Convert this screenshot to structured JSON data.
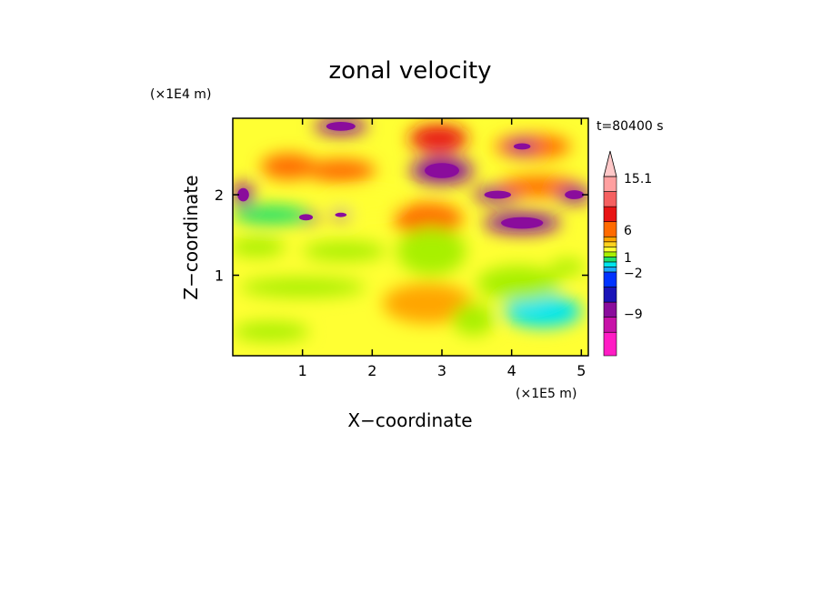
{
  "chart_data": {
    "type": "heatmap",
    "title": "zonal velocity",
    "xlabel": "X−coordinate",
    "ylabel": "Z−coordinate",
    "x_unit": "(×1E5 m)",
    "y_unit": "(×1E4 m)",
    "time_label": "t=80400 s",
    "xlim": [
      0,
      5.1
    ],
    "ylim": [
      0,
      2.95
    ],
    "x_ticks": [
      1,
      2,
      3,
      4,
      5
    ],
    "y_ticks": [
      1,
      2
    ],
    "colorbar": {
      "colors": [
        "#ff1cc4",
        "#c712a8",
        "#8a0c9c",
        "#1a14b8",
        "#0033ff",
        "#1aa9ff",
        "#00e5ee",
        "#22e06a",
        "#a8f000",
        "#ffff33",
        "#ffd21f",
        "#ffa500",
        "#ff6a00",
        "#e81414",
        "#f56060",
        "#ffa0a0",
        "#ffc8c8"
      ],
      "labels": [
        "15.1",
        "6",
        "1",
        "−2",
        "−9"
      ],
      "extend_top": true
    },
    "features": [
      {
        "x": 1.55,
        "z": 2.85,
        "rx": 0.38,
        "rz": 0.1,
        "value": -9
      },
      {
        "x": 2.95,
        "z": 2.7,
        "rx": 0.42,
        "rz": 0.17,
        "value": 6
      },
      {
        "x": 3.0,
        "z": 2.3,
        "rx": 0.45,
        "rz": 0.17,
        "value": -9
      },
      {
        "x": 0.8,
        "z": 2.35,
        "rx": 0.4,
        "rz": 0.16,
        "value": 4
      },
      {
        "x": 1.55,
        "z": 2.3,
        "rx": 0.5,
        "rz": 0.14,
        "value": 4
      },
      {
        "x": 4.3,
        "z": 2.6,
        "rx": 0.55,
        "rz": 0.15,
        "value": 5
      },
      {
        "x": 4.15,
        "z": 2.6,
        "rx": 0.22,
        "rz": 0.07,
        "value": -9
      },
      {
        "x": 3.8,
        "z": 2.0,
        "rx": 0.35,
        "rz": 0.09,
        "value": -9
      },
      {
        "x": 4.15,
        "z": 1.65,
        "rx": 0.55,
        "rz": 0.13,
        "value": -9
      },
      {
        "x": 4.4,
        "z": 2.1,
        "rx": 0.6,
        "rz": 0.13,
        "value": 5
      },
      {
        "x": 1.05,
        "z": 1.72,
        "rx": 0.18,
        "rz": 0.07,
        "value": -9
      },
      {
        "x": 1.55,
        "z": 1.75,
        "rx": 0.15,
        "rz": 0.05,
        "value": -9
      },
      {
        "x": 0.55,
        "z": 1.75,
        "rx": 0.55,
        "rz": 0.12,
        "value": -2
      },
      {
        "x": 1.9,
        "z": 1.9,
        "rx": 0.55,
        "rz": 0.12,
        "value": 0
      },
      {
        "x": 2.8,
        "z": 1.7,
        "rx": 0.5,
        "rz": 0.2,
        "value": 4
      },
      {
        "x": 2.85,
        "z": 1.3,
        "rx": 0.5,
        "rz": 0.3,
        "value": -1
      },
      {
        "x": 0.35,
        "z": 1.35,
        "rx": 0.4,
        "rz": 0.12,
        "value": -1
      },
      {
        "x": 1.6,
        "z": 1.3,
        "rx": 0.6,
        "rz": 0.12,
        "value": -1
      },
      {
        "x": 1.0,
        "z": 0.85,
        "rx": 0.9,
        "rz": 0.12,
        "value": -1
      },
      {
        "x": 4.45,
        "z": 0.55,
        "rx": 0.55,
        "rz": 0.2,
        "value": -3
      },
      {
        "x": 4.1,
        "z": 0.9,
        "rx": 0.6,
        "rz": 0.22,
        "value": -1
      },
      {
        "x": 2.8,
        "z": 0.65,
        "rx": 0.65,
        "rz": 0.25,
        "value": 2
      },
      {
        "x": 0.55,
        "z": 0.3,
        "rx": 0.55,
        "rz": 0.12,
        "value": -1
      },
      {
        "x": 3.45,
        "z": 0.45,
        "rx": 0.3,
        "rz": 0.2,
        "value": -1
      },
      {
        "x": 4.9,
        "z": 2.0,
        "rx": 0.25,
        "rz": 0.1,
        "value": -9
      },
      {
        "x": 0.15,
        "z": 2.0,
        "rx": 0.15,
        "rz": 0.15,
        "value": -9
      },
      {
        "x": 4.8,
        "z": 1.1,
        "rx": 0.25,
        "rz": 0.1,
        "value": -1
      }
    ]
  }
}
